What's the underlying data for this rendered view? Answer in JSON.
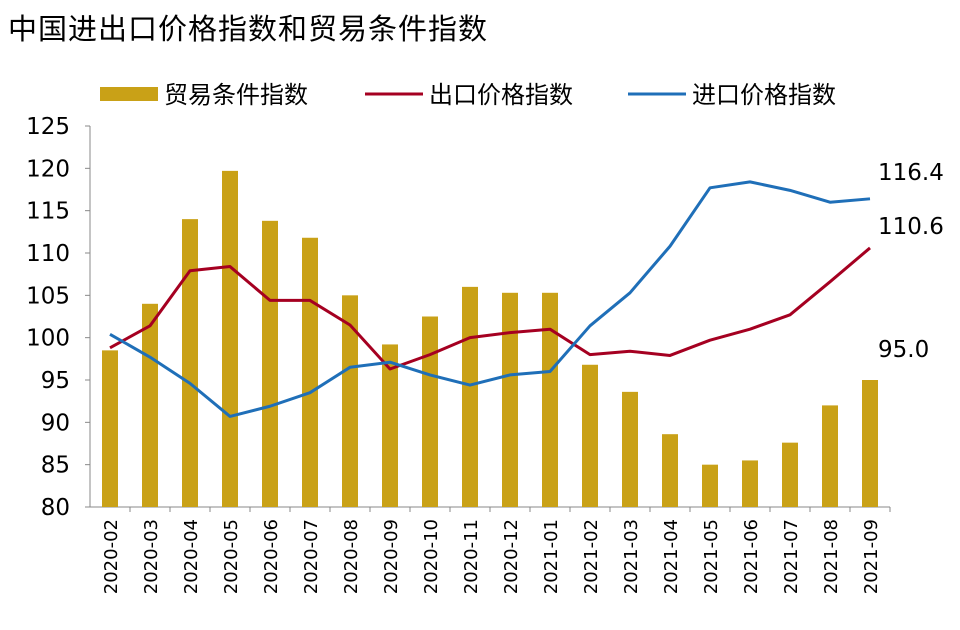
{
  "chart_data": {
    "type": "bar+line",
    "title": "中国进出口价格指数和贸易条件指数",
    "categories": [
      "2020-02",
      "2020-03",
      "2020-04",
      "2020-05",
      "2020-06",
      "2020-07",
      "2020-08",
      "2020-09",
      "2020-10",
      "2020-11",
      "2020-12",
      "2021-01",
      "2021-02",
      "2021-03",
      "2021-04",
      "2021-05",
      "2021-06",
      "2021-07",
      "2021-08",
      "2021-09"
    ],
    "ylim": [
      80,
      125
    ],
    "yticks": [
      80,
      85,
      90,
      95,
      100,
      105,
      110,
      115,
      120,
      125
    ],
    "legend_position": "top",
    "grid": false,
    "series": [
      {
        "name": "贸易条件指数",
        "kind": "bar",
        "color": "#C9A117",
        "values": [
          98.5,
          104.0,
          114.0,
          119.7,
          113.8,
          111.8,
          105.0,
          99.2,
          102.5,
          106.0,
          105.3,
          105.3,
          96.8,
          93.6,
          88.6,
          85.0,
          85.5,
          87.6,
          92.0,
          95.0
        ]
      },
      {
        "name": "出口价格指数",
        "kind": "line",
        "color": "#A50021",
        "values": [
          98.8,
          101.4,
          107.9,
          108.4,
          104.4,
          104.4,
          101.5,
          96.3,
          98.0,
          100.0,
          100.6,
          101.0,
          98.0,
          98.4,
          97.9,
          99.7,
          101.0,
          102.7,
          106.6,
          110.6
        ]
      },
      {
        "name": "进口价格指数",
        "kind": "line",
        "color": "#1F6FB8",
        "values": [
          100.4,
          97.7,
          94.6,
          90.7,
          91.9,
          93.5,
          96.5,
          97.1,
          95.6,
          94.4,
          95.6,
          96.0,
          101.4,
          105.3,
          110.8,
          117.7,
          118.4,
          117.4,
          116.0,
          116.4
        ]
      }
    ],
    "annotations": [
      "116.4",
      "110.6",
      "95.0"
    ]
  }
}
